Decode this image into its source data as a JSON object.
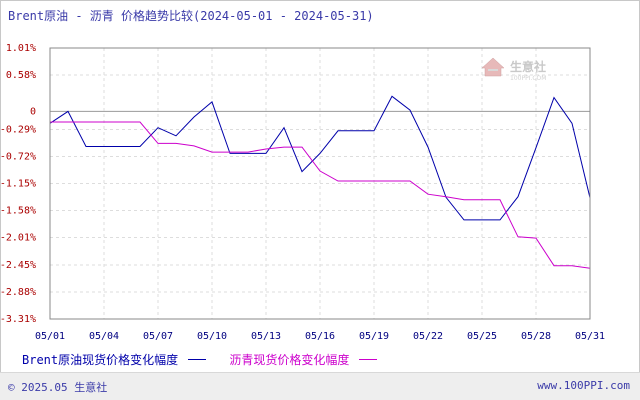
{
  "title": "Brent原油 - 沥青 价格趋势比较(2024-05-01 - 2024-05-31)",
  "watermark": {
    "text": "生意社",
    "url": "100PPI.COM"
  },
  "footer": {
    "copyright": "© 2025.05 生意社",
    "site": "www.100PPI.com"
  },
  "chart_data": {
    "type": "line",
    "title": "Brent原油 - 沥青 价格趋势比较(2024-05-01 - 2024-05-31)",
    "x_tick_labels": [
      "05/01",
      "05/04",
      "05/07",
      "05/10",
      "05/13",
      "05/16",
      "05/19",
      "05/22",
      "05/25",
      "05/28",
      "05/31"
    ],
    "y_tick_labels": [
      "1.01%",
      "0.58%",
      "0",
      "-0.29%",
      "-0.72%",
      "-1.15%",
      "-1.58%",
      "-2.01%",
      "-2.45%",
      "-2.88%",
      "-3.31%"
    ],
    "y_tick_values": [
      1.01,
      0.58,
      0,
      -0.29,
      -0.72,
      -1.15,
      -1.58,
      -2.01,
      -2.45,
      -2.88,
      -3.31
    ],
    "ylim": [
      -3.31,
      1.01
    ],
    "xlim": [
      1,
      31
    ],
    "grid": true,
    "legend_position": "bottom",
    "series": [
      {
        "name": "Brent原油现货价格变化幅度",
        "color": "#0000aa",
        "x": [
          1,
          2,
          3,
          4,
          5,
          6,
          7,
          8,
          9,
          10,
          11,
          12,
          13,
          14,
          15,
          16,
          17,
          18,
          19,
          20,
          21,
          22,
          23,
          24,
          25,
          26,
          27,
          28,
          29,
          30,
          31
        ],
        "values": [
          -0.19,
          0.0,
          -0.56,
          -0.56,
          -0.56,
          -0.56,
          -0.26,
          -0.39,
          -0.09,
          0.15,
          -0.67,
          -0.67,
          -0.67,
          -0.26,
          -0.96,
          -0.67,
          -0.31,
          -0.31,
          -0.31,
          0.24,
          0.02,
          -0.57,
          -1.37,
          -1.73,
          -1.73,
          -1.73,
          -1.36,
          -0.58,
          0.22,
          -0.19,
          -1.38
        ]
      },
      {
        "name": "沥青现货价格变化幅度",
        "color": "#cc00cc",
        "x": [
          1,
          2,
          3,
          4,
          5,
          6,
          7,
          8,
          9,
          10,
          11,
          12,
          13,
          14,
          15,
          16,
          17,
          18,
          19,
          20,
          21,
          22,
          23,
          24,
          25,
          26,
          27,
          28,
          29,
          30,
          31
        ],
        "values": [
          -0.17,
          -0.17,
          -0.17,
          -0.17,
          -0.17,
          -0.17,
          -0.51,
          -0.51,
          -0.55,
          -0.65,
          -0.65,
          -0.65,
          -0.6,
          -0.57,
          -0.57,
          -0.95,
          -1.11,
          -1.11,
          -1.11,
          -1.11,
          -1.11,
          -1.32,
          -1.36,
          -1.41,
          -1.41,
          -1.41,
          -2.0,
          -2.02,
          -2.46,
          -2.46,
          -2.5
        ]
      }
    ]
  }
}
